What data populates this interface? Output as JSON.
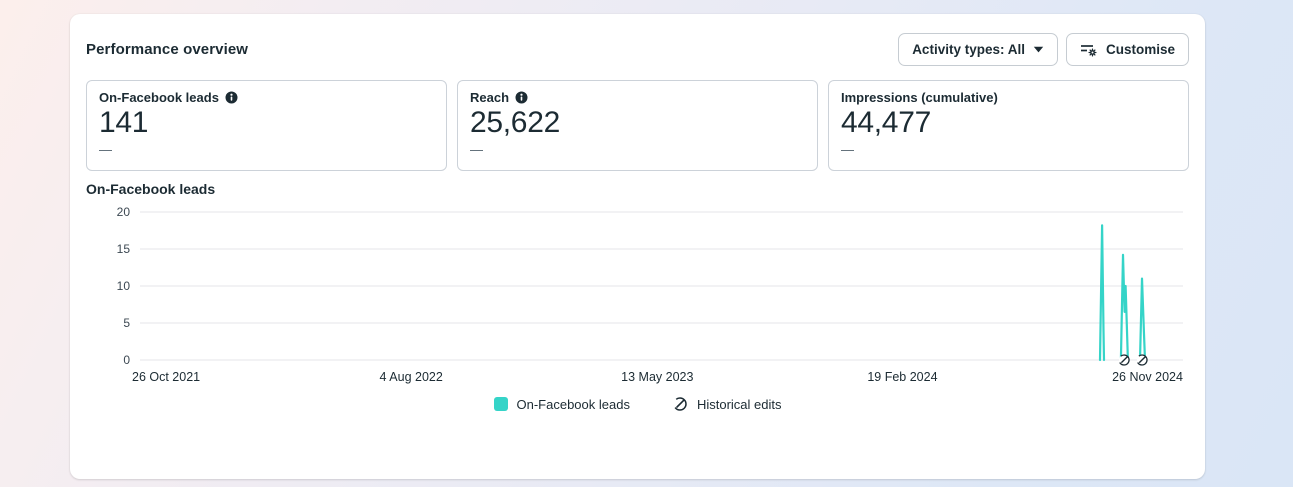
{
  "header": {
    "title": "Performance overview"
  },
  "toolbar": {
    "activity_types_label": "Activity types: All",
    "customise_label": "Customise"
  },
  "metric_cards": [
    {
      "label": "On-Facebook leads",
      "has_info_icon": true,
      "value": "141",
      "comparison": "—"
    },
    {
      "label": "Reach",
      "has_info_icon": true,
      "value": "25,622",
      "comparison": "—"
    },
    {
      "label": "Impressions (cumulative)",
      "has_info_icon": false,
      "value": "44,477",
      "comparison": "—"
    }
  ],
  "chart_data": {
    "type": "line",
    "title": "On-Facebook leads",
    "xlabel": "",
    "ylabel": "",
    "ylim": [
      0,
      20
    ],
    "y_ticks": [
      0,
      5,
      10,
      15,
      20
    ],
    "x_tick_labels": [
      "26 Oct 2021",
      "4 Aug 2022",
      "13 May 2023",
      "19 Feb 2024",
      "26 Nov 2024"
    ],
    "x_tick_positions": [
      0.025,
      0.26,
      0.496,
      0.731,
      0.966
    ],
    "grid": true,
    "grid_color": "#e4e6ea",
    "tick_color": "#3c4852",
    "axis_label_color": "#1c2b33",
    "marker_color": "#1c2b33",
    "legend_position": "bottom-center",
    "series": [
      {
        "name": "On-Facebook leads",
        "color": "#35d4c8",
        "segments": [
          [
            [
              0.9204,
              0
            ],
            [
              0.9224,
              18.2
            ],
            [
              0.9238,
              4.0
            ],
            [
              0.9243,
              0
            ]
          ],
          [
            [
              0.9405,
              0
            ],
            [
              0.9425,
              14.2
            ],
            [
              0.944,
              6.5
            ],
            [
              0.945,
              10.0
            ],
            [
              0.9472,
              0
            ]
          ],
          [
            [
              0.9588,
              0
            ],
            [
              0.9607,
              11.0
            ],
            [
              0.9626,
              3.5
            ],
            [
              0.9636,
              0
            ]
          ]
        ],
        "peak_values": [
          18,
          14,
          11
        ]
      }
    ],
    "historical_edit_markers": {
      "x_positions": [
        0.9435,
        0.9607
      ],
      "icon": "historical-edit-icon"
    },
    "legend": [
      {
        "label": "On-Facebook leads",
        "swatch_color": "#35d4c8"
      },
      {
        "label": "Historical edits",
        "icon": "historical-edit-icon"
      }
    ]
  }
}
